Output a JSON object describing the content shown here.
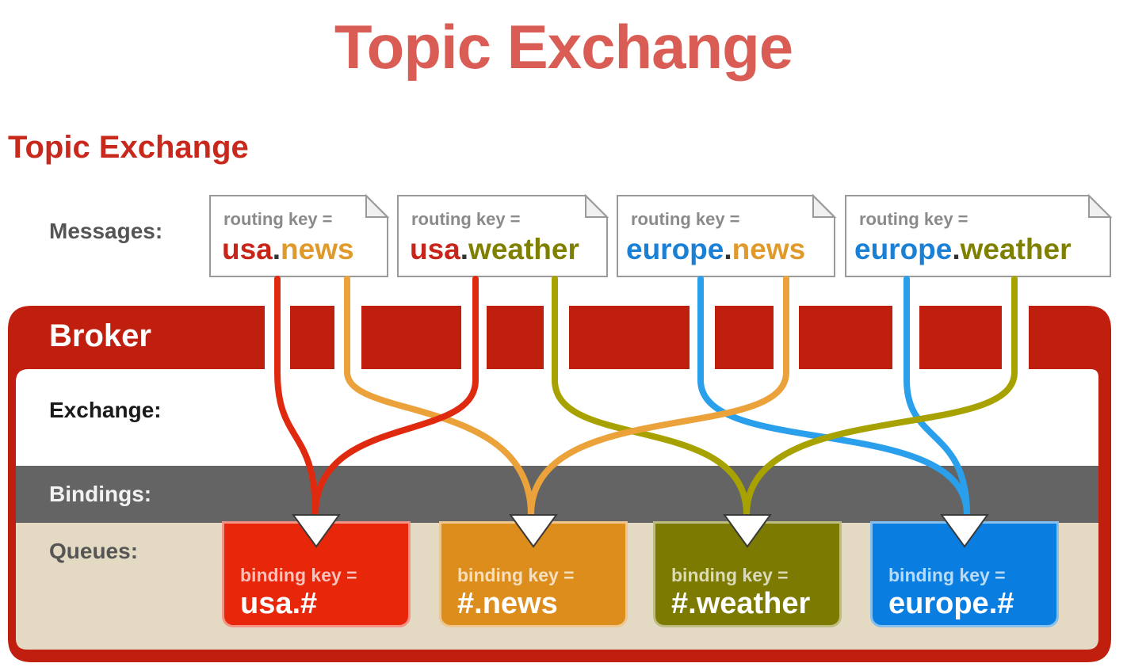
{
  "title": "Topic Exchange",
  "subtitle": "Topic Exchange",
  "labels": {
    "messages": "Messages:",
    "broker": "Broker",
    "exchange": "Exchange:",
    "bindings": "Bindings:",
    "queues": "Queues:"
  },
  "colors": {
    "title": "#d95c55",
    "broker_red": "#c01f0f",
    "bindings_gray": "#646464",
    "queues_beige": "#e4dac4",
    "usa": "#c8251a",
    "news": "#e09a2c",
    "weather": "#7f7f00",
    "europe": "#1a80d6"
  },
  "messages": [
    {
      "routing_key_label": "routing key =",
      "part1": "usa",
      "sep": ".",
      "part2": "news",
      "color1": "#c8251a",
      "color2": "#e09a2c"
    },
    {
      "routing_key_label": "routing key =",
      "part1": "usa",
      "sep": ".",
      "part2": "weather",
      "color1": "#c8251a",
      "color2": "#7f7f00"
    },
    {
      "routing_key_label": "routing key =",
      "part1": "europe",
      "sep": ".",
      "part2": "news",
      "color1": "#1a80d6",
      "color2": "#e09a2c"
    },
    {
      "routing_key_label": "routing key =",
      "part1": "europe",
      "sep": ".",
      "part2": "weather",
      "color1": "#1a80d6",
      "color2": "#7f7f00"
    }
  ],
  "queues": [
    {
      "binding_key_label": "binding key =",
      "key": "usa.#",
      "color": "#e8260a"
    },
    {
      "binding_key_label": "binding key =",
      "key": "#.news",
      "color": "#dd8d1c"
    },
    {
      "binding_key_label": "binding key =",
      "key": "#.weather",
      "color": "#7c7a00"
    },
    {
      "binding_key_label": "binding key =",
      "key": "europe.#",
      "color": "#0a7ee0"
    }
  ]
}
